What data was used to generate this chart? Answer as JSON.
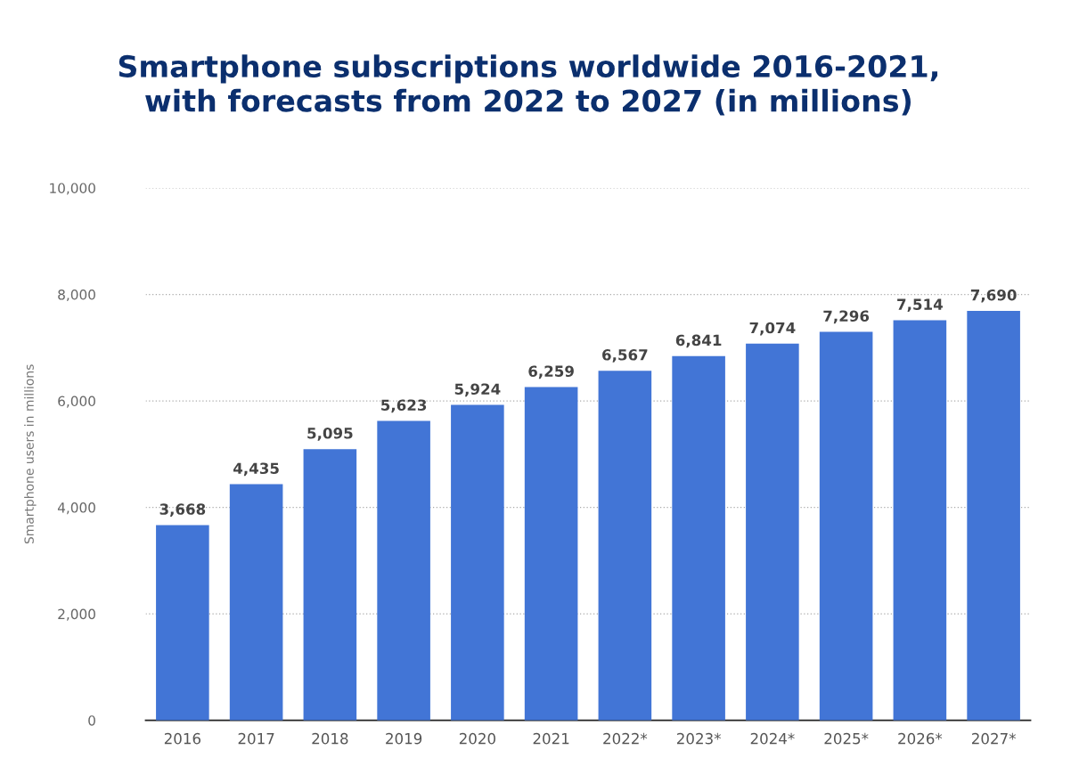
{
  "chart_data": {
    "type": "bar",
    "title": "Smartphone subscriptions worldwide 2016-2021,\nwith forecasts from 2022 to 2027 (in millions)",
    "ylabel": "Smartphone users in millions",
    "categories": [
      "2016",
      "2017",
      "2018",
      "2019",
      "2020",
      "2021",
      "2022*",
      "2023*",
      "2024*",
      "2025*",
      "2026*",
      "2027*"
    ],
    "values": [
      3668,
      4435,
      5095,
      5623,
      5924,
      6259,
      6567,
      6841,
      7074,
      7296,
      7514,
      7690
    ],
    "value_labels": [
      "3,668",
      "4,435",
      "5,095",
      "5,623",
      "5,924",
      "6,259",
      "6,567",
      "6,841",
      "7,074",
      "7,296",
      "7,514",
      "7,690"
    ],
    "color": "#4275d6",
    "ylim": [
      0,
      10000
    ],
    "yticks": [
      0,
      {
        "value": 2000,
        "label": "2,000"
      },
      {
        "value": 4000,
        "label": "4,000"
      },
      {
        "value": 6000,
        "label": "6,000"
      },
      {
        "value": 8000,
        "label": "8,000"
      },
      {
        "value": 10000,
        "label": "10,000"
      }
    ],
    "grid": "y",
    "legend": false
  }
}
